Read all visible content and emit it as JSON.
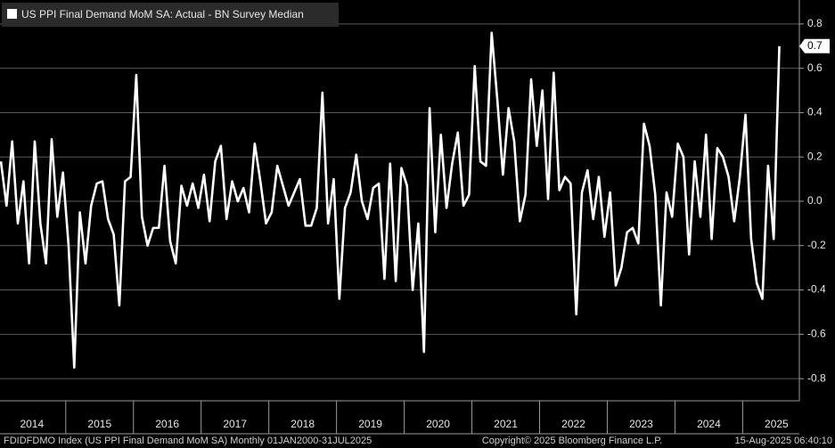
{
  "chart_data": {
    "type": "line",
    "series": [
      {
        "name": "US PPI Final Demand MoM SA: Actual - BN Survey Median",
        "color": "#ffffff",
        "values": [
          0.18,
          -0.02,
          0.27,
          -0.1,
          0.09,
          -0.28,
          0.27,
          -0.1,
          -0.28,
          0.28,
          -0.07,
          0.13,
          -0.2,
          -0.75,
          -0.05,
          -0.28,
          -0.02,
          0.08,
          0.09,
          -0.08,
          -0.15,
          -0.47,
          0.09,
          0.11,
          0.57,
          -0.07,
          -0.2,
          -0.12,
          -0.12,
          0.16,
          -0.18,
          -0.28,
          0.07,
          -0.02,
          0.08,
          -0.03,
          0.12,
          -0.09,
          0.18,
          0.25,
          -0.08,
          0.09,
          0,
          0.06,
          -0.05,
          0.26,
          0.09,
          -0.1,
          -0.05,
          0.16,
          0.07,
          -0.02,
          0.04,
          0.1,
          -0.11,
          -0.11,
          -0.03,
          0.49,
          -0.1,
          0.1,
          -0.44,
          -0.03,
          0.04,
          0.21,
          0,
          -0.08,
          0.06,
          0.08,
          -0.35,
          0.17,
          -0.36,
          0.15,
          0.07,
          -0.4,
          -0.1,
          -0.68,
          0.42,
          -0.14,
          0.3,
          -0.03,
          0.17,
          0.31,
          -0.02,
          0.03,
          0.61,
          0.18,
          0.16,
          0.76,
          0.46,
          0.12,
          0.42,
          0.27,
          -0.09,
          0.03,
          0.55,
          0.25,
          0.5,
          0.01,
          0.58,
          0.05,
          0.11,
          0.08,
          -0.51,
          0.04,
          0.14,
          -0.08,
          0.11,
          -0.16,
          0.04,
          -0.38,
          -0.3,
          -0.14,
          -0.12,
          -0.19,
          0.35,
          0.25,
          0.03,
          -0.47,
          0.04,
          -0.07,
          0.26,
          0.2,
          -0.24,
          0.18,
          -0.07,
          0.3,
          -0.17,
          0.24,
          0.2,
          0.11,
          -0.09,
          0.11,
          0.39,
          -0.17,
          -0.37,
          -0.44,
          0.16,
          -0.17,
          0.7
        ]
      }
    ],
    "categories": [
      null,
      null,
      null,
      null,
      null,
      null,
      "2014",
      null,
      null,
      null,
      null,
      null,
      null,
      null,
      null,
      null,
      null,
      null,
      "2015",
      null,
      null,
      null,
      null,
      null,
      null,
      null,
      null,
      null,
      null,
      null,
      "2016",
      null,
      null,
      null,
      null,
      null,
      null,
      null,
      null,
      null,
      null,
      null,
      "2017",
      null,
      null,
      null,
      null,
      null,
      null,
      null,
      null,
      null,
      null,
      null,
      "2018",
      null,
      null,
      null,
      null,
      null,
      null,
      null,
      null,
      null,
      null,
      null,
      "2019",
      null,
      null,
      null,
      null,
      null,
      null,
      null,
      null,
      null,
      null,
      null,
      "2020",
      null,
      null,
      null,
      null,
      null,
      null,
      null,
      null,
      null,
      null,
      null,
      "2021",
      null,
      null,
      null,
      null,
      null,
      null,
      null,
      null,
      null,
      null,
      null,
      "2022",
      null,
      null,
      null,
      null,
      null,
      null,
      null,
      null,
      null,
      null,
      null,
      "2023",
      null,
      null,
      null,
      null,
      null,
      null,
      null,
      null,
      null,
      null,
      null,
      "2024",
      null,
      null,
      null,
      null,
      null,
      null,
      null,
      null,
      null,
      null,
      null,
      "2025"
    ],
    "ylim": [
      -0.9,
      0.9
    ],
    "yticks": [
      -0.8,
      -0.6,
      -0.4,
      -0.2,
      {
        "value": 0,
        "label": "0.0"
      },
      0.2,
      0.4,
      0.6,
      0.8
    ],
    "grid": true,
    "footer": [
      "FDIDFDMO Index (US PPI Final Demand MoM SA)  Monthly 01JAN2000-31JUL2025",
      "Copyright© 2025 Bloomberg Finance L.P.",
      "15-Aug-2025 06:40:10"
    ]
  }
}
